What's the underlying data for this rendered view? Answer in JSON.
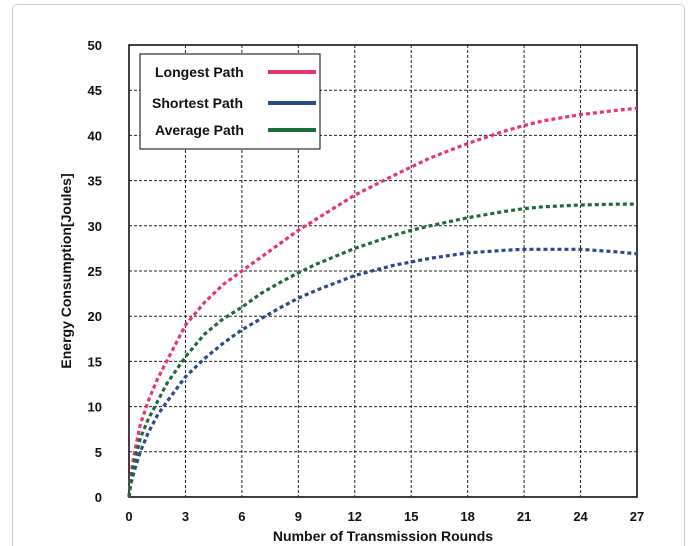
{
  "chart_data": {
    "type": "line",
    "title": "",
    "xlabel": "Number of Transmission Rounds",
    "ylabel": "Energy Consumption[Joules]",
    "xlim": [
      0,
      27
    ],
    "ylim": [
      0,
      50
    ],
    "xticks": [
      "0",
      "3",
      "6",
      "9",
      "12",
      "15",
      "18",
      "21",
      "24",
      "27"
    ],
    "yticks": [
      "0",
      "5",
      "10",
      "15",
      "20",
      "25",
      "30",
      "35",
      "40",
      "45",
      "50"
    ],
    "grid": true,
    "legend_position": "top-left",
    "series": [
      {
        "name": "Longest Path",
        "color": "#e8336d",
        "x": [
          0,
          0.1,
          0.3,
          0.6,
          1,
          1.5,
          2,
          3,
          4,
          5,
          6,
          7,
          8,
          9,
          10,
          12,
          14,
          15,
          16,
          18,
          20,
          21,
          22,
          24,
          26,
          27
        ],
        "y": [
          0,
          2.5,
          5,
          8,
          10.5,
          13,
          15,
          19,
          21.5,
          23.5,
          25,
          26.5,
          28,
          29.5,
          30.8,
          33.4,
          35.5,
          36.5,
          37.5,
          39.1,
          40.5,
          41.1,
          41.6,
          42.3,
          42.8,
          43
        ]
      },
      {
        "name": "Shortest Path",
        "color": "#2b4a8e",
        "x": [
          0,
          0.1,
          0.3,
          0.6,
          1,
          1.5,
          2,
          3,
          4,
          5,
          6,
          7,
          8,
          9,
          10,
          12,
          14,
          15,
          16,
          18,
          20,
          21,
          22,
          24,
          26,
          27
        ],
        "y": [
          0,
          1.5,
          3,
          5,
          7,
          9,
          10.5,
          13.3,
          15.3,
          17,
          18.5,
          19.7,
          20.9,
          22,
          22.9,
          24.5,
          25.6,
          26,
          26.4,
          27,
          27.3,
          27.4,
          27.4,
          27.4,
          27.1,
          26.9
        ]
      },
      {
        "name": "Average Path",
        "color": "#1e6b3a",
        "x": [
          0,
          0.1,
          0.3,
          0.6,
          1,
          1.5,
          2,
          3,
          4,
          5,
          6,
          7,
          8,
          9,
          10,
          12,
          14,
          15,
          16,
          18,
          20,
          21,
          22,
          24,
          26,
          27
        ],
        "y": [
          0,
          2,
          4,
          6.5,
          8.5,
          10.5,
          12.5,
          15.5,
          18,
          19.7,
          21,
          22.5,
          23.7,
          24.8,
          25.8,
          27.5,
          28.9,
          29.5,
          30,
          30.9,
          31.6,
          31.9,
          32.1,
          32.3,
          32.4,
          32.4
        ]
      }
    ]
  }
}
